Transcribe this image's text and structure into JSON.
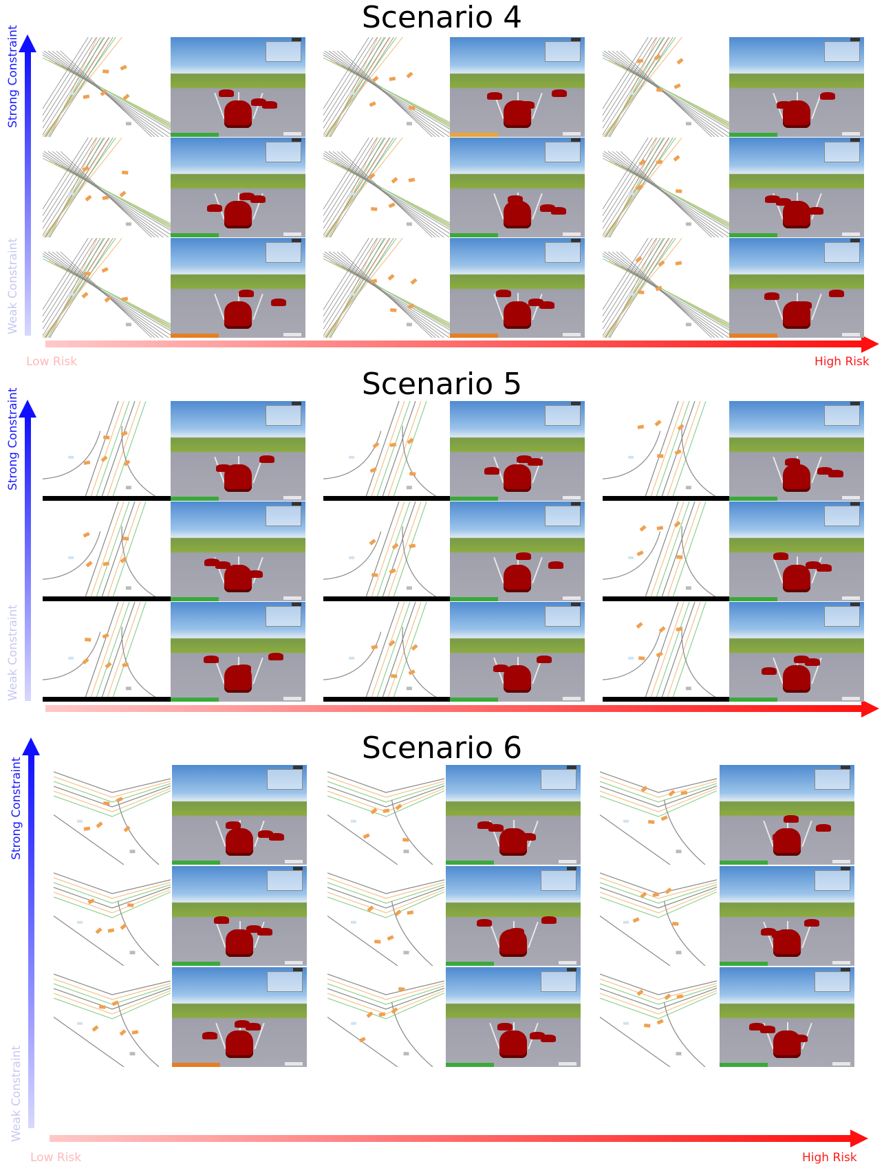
{
  "scenarios": [
    {
      "title": "Scenario 4",
      "style": "intersection",
      "status_colors": [
        "#3aa93a",
        "#e9a53a",
        "#3aa93a",
        "#3aa93a",
        "#3aa93a",
        "#3aa93a",
        "#e67e22",
        "#e67e22",
        "#e67e22"
      ]
    },
    {
      "title": "Scenario 5",
      "style": "merge",
      "status_colors": [
        "#3aa93a",
        "#3aa93a",
        "#3aa93a",
        "#3aa93a",
        "#3aa93a",
        "#3aa93a",
        "#3aa93a",
        "#3aa93a",
        "#3aa93a"
      ]
    },
    {
      "title": "Scenario 6",
      "style": "junction",
      "status_colors": [
        "#3aa93a",
        "#3aa93a",
        "#3aa93a",
        "#3aa93a",
        "#3aa93a",
        "#3aa93a",
        "#e67e22",
        "#3aa93a",
        "#3aa93a"
      ]
    }
  ],
  "axes": {
    "strong_label": "Strong Constraint",
    "weak_label": "Weak Constraint",
    "low_label": "Low Risk",
    "high_label": "High Risk"
  },
  "colors": {
    "constraint_axis": "#1010ff",
    "risk_axis": "#ff1010",
    "vehicle": "#a00000",
    "map_agent": "#f0a050"
  }
}
